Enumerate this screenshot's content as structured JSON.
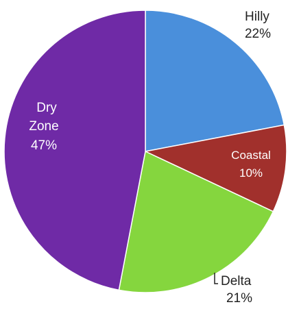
{
  "chart_data": {
    "type": "pie",
    "slices": [
      {
        "label": "Hilly",
        "pct_label": "22%",
        "value": 22,
        "color": "#4a8fdb"
      },
      {
        "label": "Coastal",
        "pct_label": "10%",
        "value": 10,
        "color": "#a1302c"
      },
      {
        "label": "Delta",
        "pct_label": "21%",
        "value": 21,
        "color": "#85d63e"
      },
      {
        "label": "Dry Zone",
        "label_lines": [
          "Dry",
          "Zone"
        ],
        "pct_label": "47%",
        "value": 47,
        "color": "#6f2aa6"
      }
    ],
    "title": "",
    "legend": "none",
    "labels_position": "on-slices-and-outside"
  }
}
